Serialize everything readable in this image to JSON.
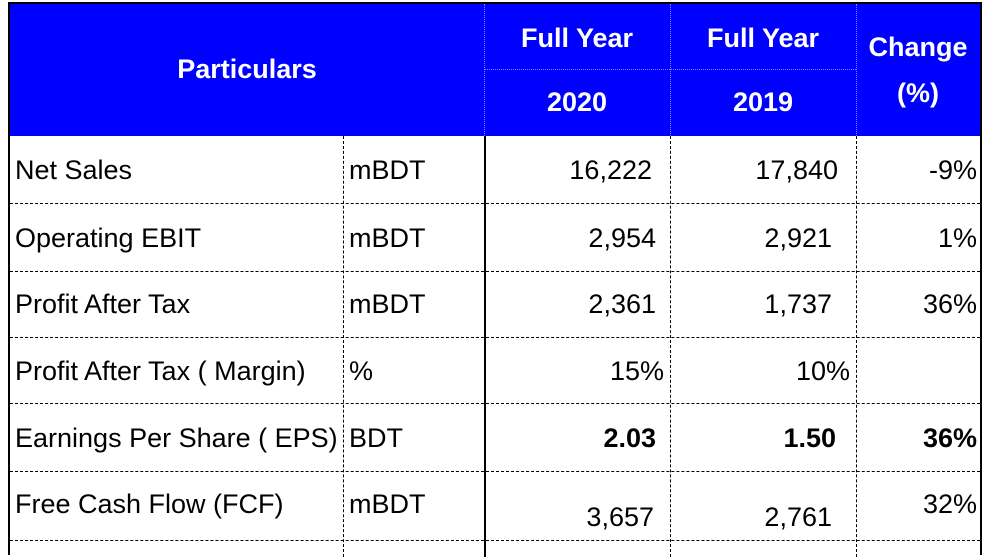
{
  "table": {
    "header": {
      "particulars": "Particulars",
      "full_year_1": "Full Year",
      "full_year_2": "Full Year",
      "year_1": "2020",
      "year_2": "2019",
      "change_line1": "Change",
      "change_line2": "(%)"
    },
    "rows": [
      {
        "label": "Net Sales",
        "unit": "mBDT",
        "y2020": "16,222",
        "y2019": "17,840",
        "change": "-9%"
      },
      {
        "label": "Operating EBIT",
        "unit": "mBDT",
        "y2020": "2,954",
        "y2019": "2,921",
        "change": "1%"
      },
      {
        "label": "Profit After Tax",
        "unit": "mBDT",
        "y2020": "2,361",
        "y2019": "1,737",
        "change": "36%"
      },
      {
        "label": "Profit After Tax ( Margin)",
        "unit": "%",
        "y2020": "15%",
        "y2019": "10%",
        "change": ""
      },
      {
        "label": "Earnings Per Share ( EPS)",
        "unit": "BDT",
        "y2020": "2.03",
        "y2019": "1.50",
        "change": "36%"
      },
      {
        "label": "Free Cash Flow (FCF)",
        "unit": "mBDT",
        "y2020": "3,657",
        "y2019": "2,761",
        "change": "32%"
      }
    ]
  },
  "colors": {
    "header_bg": "#0000ff",
    "header_text": "#ffffff"
  }
}
